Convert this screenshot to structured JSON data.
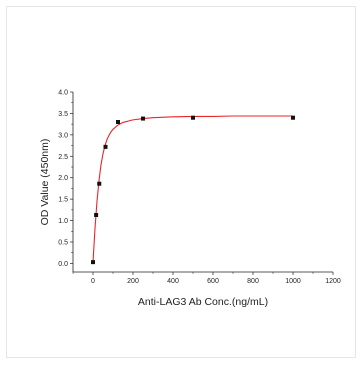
{
  "chart_data": {
    "type": "scatter",
    "xlabel": "Anti-LAG3 Ab Conc.(ng/mL)",
    "ylabel": "OD Value (450nm)",
    "xlim": [
      -100,
      1200
    ],
    "ylim": [
      -0.2,
      4.0
    ],
    "xticks": [
      0,
      200,
      400,
      600,
      800,
      1000,
      1200
    ],
    "yticks": [
      0.0,
      0.5,
      1.0,
      1.5,
      2.0,
      2.5,
      3.0,
      3.5,
      4.0
    ],
    "xtick_labels": [
      "0",
      "200",
      "400",
      "600",
      "800",
      "1000",
      "1200"
    ],
    "ytick_labels": [
      "0.0",
      "0.5",
      "1.0",
      "1.5",
      "2.0",
      "2.5",
      "3.0",
      "3.5",
      "4.0"
    ],
    "grid": false,
    "series": [
      {
        "kind": "points",
        "marker": "square",
        "color": "#111111",
        "x": [
          0,
          15.6,
          31.3,
          62.5,
          125,
          250,
          500,
          1000
        ],
        "y": [
          0.03,
          1.13,
          1.86,
          2.72,
          3.3,
          3.38,
          3.4,
          3.4
        ]
      },
      {
        "kind": "fit-curve",
        "color": "#e8262b",
        "x": [
          0,
          10,
          20,
          30,
          40,
          50,
          60,
          70,
          80,
          90,
          100,
          125,
          150,
          175,
          200,
          250,
          300,
          400,
          500,
          600,
          700,
          800,
          900,
          1000
        ],
        "y": [
          0.03,
          0.82,
          1.45,
          1.93,
          2.3,
          2.56,
          2.75,
          2.89,
          2.99,
          3.07,
          3.13,
          3.23,
          3.29,
          3.32,
          3.35,
          3.38,
          3.4,
          3.42,
          3.43,
          3.43,
          3.44,
          3.44,
          3.44,
          3.44
        ]
      }
    ]
  }
}
